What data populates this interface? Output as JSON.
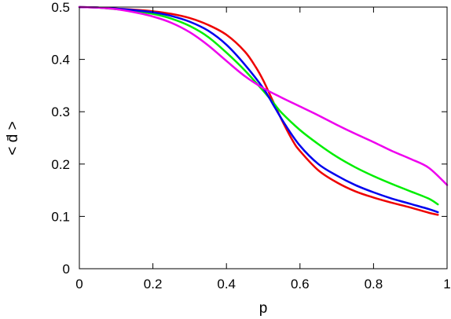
{
  "chart_data": {
    "type": "line",
    "title": "",
    "xlabel": "p",
    "ylabel": "< d̄ >",
    "xlim": [
      0,
      1
    ],
    "ylim": [
      0,
      0.5
    ],
    "xticks": [
      "0",
      "0.2",
      "0.4",
      "0.6",
      "0.8",
      "1"
    ],
    "yticks": [
      "0",
      "0.1",
      "0.2",
      "0.3",
      "0.4",
      "0.5"
    ],
    "grid": false,
    "legend": "none",
    "series": [
      {
        "color": "#ee0000",
        "x": [
          0,
          0.05,
          0.1,
          0.15,
          0.2,
          0.25,
          0.3,
          0.35,
          0.4,
          0.45,
          0.48,
          0.5,
          0.52,
          0.55,
          0.58,
          0.6,
          0.65,
          0.7,
          0.75,
          0.8,
          0.85,
          0.9,
          0.95,
          0.975
        ],
        "y": [
          0.5,
          0.499,
          0.497,
          0.495,
          0.492,
          0.487,
          0.479,
          0.466,
          0.447,
          0.415,
          0.385,
          0.36,
          0.33,
          0.285,
          0.245,
          0.225,
          0.188,
          0.165,
          0.148,
          0.136,
          0.126,
          0.117,
          0.107,
          0.103
        ]
      },
      {
        "color": "#00ee00",
        "x": [
          0,
          0.05,
          0.1,
          0.15,
          0.2,
          0.25,
          0.3,
          0.35,
          0.4,
          0.45,
          0.5,
          0.53,
          0.55,
          0.6,
          0.65,
          0.7,
          0.75,
          0.8,
          0.85,
          0.9,
          0.95,
          0.975
        ],
        "y": [
          0.5,
          0.499,
          0.496,
          0.492,
          0.487,
          0.478,
          0.464,
          0.443,
          0.413,
          0.379,
          0.34,
          0.315,
          0.298,
          0.265,
          0.238,
          0.214,
          0.194,
          0.177,
          0.162,
          0.148,
          0.134,
          0.123
        ]
      },
      {
        "color": "#0000ee",
        "x": [
          0,
          0.05,
          0.1,
          0.15,
          0.2,
          0.25,
          0.3,
          0.35,
          0.4,
          0.45,
          0.5,
          0.53,
          0.56,
          0.6,
          0.65,
          0.7,
          0.75,
          0.8,
          0.85,
          0.9,
          0.95,
          0.975
        ],
        "y": [
          0.5,
          0.499,
          0.497,
          0.494,
          0.49,
          0.483,
          0.472,
          0.455,
          0.428,
          0.39,
          0.345,
          0.31,
          0.275,
          0.235,
          0.2,
          0.178,
          0.16,
          0.146,
          0.134,
          0.124,
          0.114,
          0.108
        ]
      },
      {
        "color": "#ee00ee",
        "x": [
          0,
          0.05,
          0.1,
          0.15,
          0.2,
          0.25,
          0.3,
          0.35,
          0.4,
          0.45,
          0.5,
          0.55,
          0.6,
          0.65,
          0.7,
          0.75,
          0.8,
          0.85,
          0.9,
          0.95,
          1.0
        ],
        "y": [
          0.5,
          0.499,
          0.496,
          0.49,
          0.482,
          0.47,
          0.452,
          0.427,
          0.397,
          0.368,
          0.345,
          0.327,
          0.31,
          0.293,
          0.275,
          0.258,
          0.242,
          0.225,
          0.21,
          0.193,
          0.16
        ]
      }
    ]
  }
}
